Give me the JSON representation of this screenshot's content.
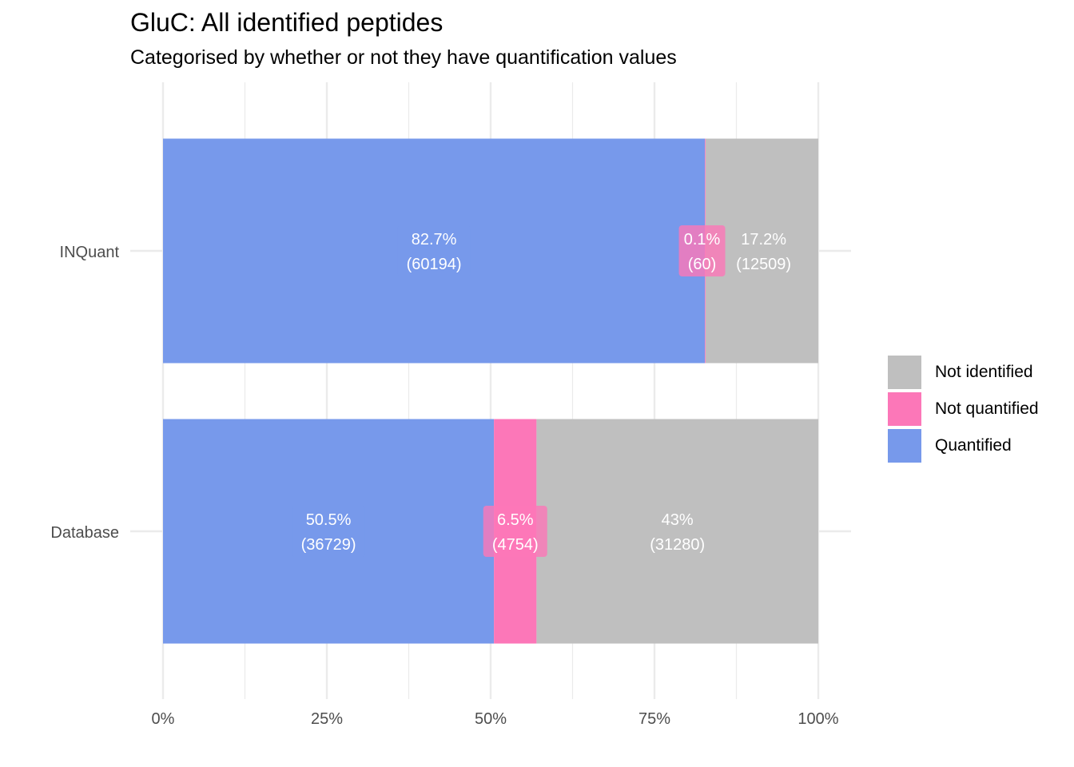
{
  "chart_data": {
    "type": "bar",
    "orientation": "horizontal",
    "stacked": "percent",
    "title": "GluC: All identified peptides",
    "subtitle": "Categorised by whether or not they have quantification values",
    "xlabel": "",
    "ylabel": "",
    "xlim": [
      0,
      100
    ],
    "x_ticks": [
      "0%",
      "25%",
      "50%",
      "75%",
      "100%"
    ],
    "grid": true,
    "legend_position": "right",
    "categories": [
      "INQuant",
      "Database"
    ],
    "series": [
      {
        "name": "Quantified",
        "color": "#7799eb",
        "values": [
          82.7,
          50.5
        ],
        "labels": [
          [
            "82.7%",
            "(60194)"
          ],
          [
            "50.5%",
            "(36729)"
          ]
        ]
      },
      {
        "name": "Not quantified",
        "color": "#fc77b8",
        "values": [
          0.1,
          6.5
        ],
        "labels": [
          [
            "0.1%",
            "(60)"
          ],
          [
            "6.5%",
            "(4754)"
          ]
        ]
      },
      {
        "name": "Not identified",
        "color": "#bfbfbf",
        "values": [
          17.2,
          43
        ],
        "labels": [
          [
            "17.2%",
            "(12509)"
          ],
          [
            "43%",
            "(31280)"
          ]
        ]
      }
    ],
    "legend_order": [
      "Not identified",
      "Not quantified",
      "Quantified"
    ]
  }
}
